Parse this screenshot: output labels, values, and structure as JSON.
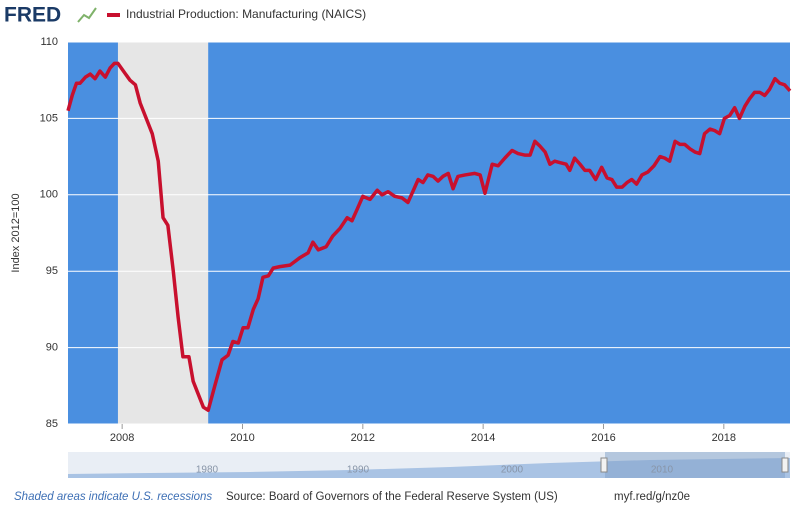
{
  "chart_data": {
    "type": "line",
    "logo": "FRED",
    "y_label": "Index 2012=100",
    "x": [
      2007.1,
      2007.17,
      2007.24,
      2007.3,
      2007.39,
      2007.47,
      2007.55,
      2007.63,
      2007.72,
      2007.8,
      2007.87,
      2007.93,
      2008.13,
      2008.22,
      2008.3,
      2008.4,
      2008.5,
      2008.6,
      2008.68,
      2008.76,
      2008.85,
      2008.93,
      2009.01,
      2009.11,
      2009.18,
      2009.26,
      2009.35,
      2009.43,
      2009.54,
      2009.66,
      2009.76,
      2009.84,
      2009.93,
      2010.01,
      2010.09,
      2010.18,
      2010.26,
      2010.34,
      2010.43,
      2010.51,
      2010.62,
      2010.79,
      2010.96,
      2011.09,
      2011.17,
      2011.26,
      2011.39,
      2011.5,
      2011.62,
      2011.74,
      2011.82,
      2011.9,
      2012.0,
      2012.12,
      2012.24,
      2012.32,
      2012.42,
      2012.53,
      2012.65,
      2012.75,
      2012.83,
      2012.92,
      2013.0,
      2013.08,
      2013.17,
      2013.25,
      2013.33,
      2013.42,
      2013.5,
      2013.58,
      2013.7,
      2013.86,
      2013.95,
      2014.03,
      2014.15,
      2014.25,
      2014.36,
      2014.48,
      2014.58,
      2014.69,
      2014.78,
      2014.86,
      2014.94,
      2015.03,
      2015.11,
      2015.19,
      2015.28,
      2015.38,
      2015.44,
      2015.52,
      2015.61,
      2015.69,
      2015.77,
      2015.87,
      2015.97,
      2016.06,
      2016.14,
      2016.22,
      2016.31,
      2016.39,
      2016.47,
      2016.55,
      2016.64,
      2016.74,
      2016.84,
      2016.94,
      2017.02,
      2017.1,
      2017.19,
      2017.27,
      2017.35,
      2017.44,
      2017.52,
      2017.6,
      2017.68,
      2017.77,
      2017.85,
      2017.93,
      2018.01,
      2018.1,
      2018.18,
      2018.26,
      2018.35,
      2018.43,
      2018.51,
      2018.6,
      2018.68,
      2018.76,
      2018.85,
      2018.93,
      2019.01,
      2019.1
    ],
    "series": [
      {
        "name": "Industrial Production: Manufacturing (NAICS)",
        "color": "#c8102e",
        "values": [
          105.5,
          106.5,
          107.3,
          107.3,
          107.7,
          107.9,
          107.6,
          108.1,
          107.7,
          108.3,
          108.6,
          108.6,
          107.5,
          107.2,
          106.0,
          105.0,
          104.0,
          102.2,
          98.5,
          98.0,
          95.0,
          92.0,
          89.4,
          89.4,
          87.8,
          87.0,
          86.1,
          85.9,
          87.5,
          89.2,
          89.5,
          90.4,
          90.3,
          91.3,
          91.3,
          92.5,
          93.2,
          94.6,
          94.7,
          95.2,
          95.3,
          95.4,
          95.9,
          96.2,
          96.9,
          96.4,
          96.6,
          97.3,
          97.8,
          98.5,
          98.3,
          99.0,
          99.9,
          99.7,
          100.3,
          100.0,
          100.2,
          99.9,
          99.8,
          99.5,
          100.2,
          101.0,
          100.8,
          101.3,
          101.2,
          100.9,
          101.2,
          101.4,
          100.4,
          101.2,
          101.3,
          101.4,
          101.3,
          100.1,
          102.0,
          101.9,
          102.4,
          102.9,
          102.7,
          102.6,
          102.6,
          103.5,
          103.2,
          102.8,
          102.0,
          102.2,
          102.1,
          102.0,
          101.6,
          102.4,
          102.0,
          101.6,
          101.6,
          101.0,
          101.8,
          101.1,
          101.0,
          100.5,
          100.5,
          100.8,
          101.0,
          100.7,
          101.3,
          101.5,
          101.9,
          102.5,
          102.4,
          102.2,
          103.5,
          103.3,
          103.3,
          103.0,
          102.8,
          102.7,
          104.0,
          104.3,
          104.2,
          104.0,
          105.0,
          105.2,
          105.7,
          105.0,
          105.8,
          106.3,
          106.7,
          106.7,
          106.5,
          106.9,
          107.6,
          107.3,
          107.2,
          106.8
        ]
      }
    ],
    "shaded": [
      {
        "start": 2007.93,
        "end": 2009.43
      }
    ],
    "shaded_color": "#e6e6e6",
    "plot_background": "#4a8fe0",
    "xlim": [
      2007.1,
      2019.1
    ],
    "xticks": [
      2008,
      2010,
      2012,
      2014,
      2016,
      2018
    ],
    "ylim": [
      85,
      110
    ],
    "yticks": [
      85,
      90,
      95,
      100,
      105,
      110
    ],
    "grid": true,
    "navigator": {
      "labels": [
        "1980",
        "1990",
        "2000",
        "2010"
      ]
    },
    "footer": {
      "note": "Shaded areas indicate U.S. recessions",
      "source": "Source: Board of Governors of the Federal Reserve System (US)",
      "link": "myf.red/g/nz0e"
    }
  }
}
